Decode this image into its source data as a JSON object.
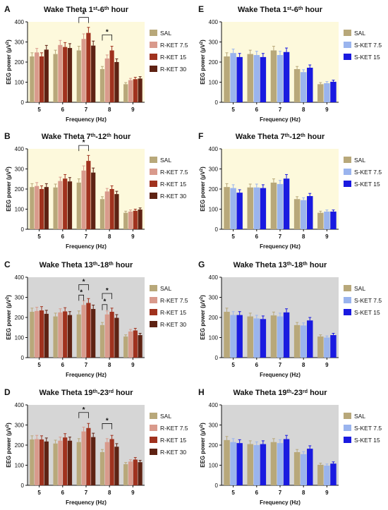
{
  "chart_data": [
    {
      "id": "A",
      "panel_label": "A",
      "type": "bar",
      "title": "Wake Theta 1st-6th hour",
      "title_parts": {
        "prefix": "Wake Theta 1",
        "sup1": "st",
        "mid": "-6",
        "sup2": "th",
        "suffix": " hour"
      },
      "xlabel": "Frequency (Hz)",
      "ylabel": "EEG power (µV²)",
      "ylabel_main": "EEG power (µV",
      "ylabel_sup": "2",
      "ylabel_end": ")",
      "ylim": [
        0,
        400
      ],
      "yticks": [
        "0",
        "100",
        "200",
        "300",
        "400"
      ],
      "categories": [
        "5",
        "6",
        "7",
        "8",
        "9"
      ],
      "background": "#fdf9dc",
      "series": [
        {
          "name": "SAL",
          "color": "#b8a87a",
          "values": [
            228,
            240,
            258,
            165,
            90
          ]
        },
        {
          "name": "R-KET 7.5",
          "color": "#d99a8c",
          "values": [
            248,
            285,
            315,
            218,
            110
          ]
        },
        {
          "name": "R-KET 15",
          "color": "#a0321e",
          "values": [
            228,
            275,
            345,
            258,
            115
          ]
        },
        {
          "name": "R-KET 30",
          "color": "#5e2213",
          "values": [
            262,
            270,
            282,
            200,
            118
          ]
        }
      ],
      "significance": [
        {
          "category": "7",
          "from": 0,
          "to": 2,
          "label": "*"
        },
        {
          "category": "8",
          "from": 0,
          "to": 2,
          "label": "*"
        }
      ]
    },
    {
      "id": "B",
      "panel_label": "B",
      "type": "bar",
      "title": "Wake Theta 7th-12th hour",
      "title_parts": {
        "prefix": "Wake Theta 7",
        "sup1": "th",
        "mid": "-12",
        "sup2": "th",
        "suffix": " hour"
      },
      "xlabel": "Frequency (Hz)",
      "ylabel": "EEG power (µV²)",
      "ylabel_main": "EEG power (µV",
      "ylabel_sup": "2",
      "ylabel_end": ")",
      "ylim": [
        0,
        400
      ],
      "yticks": [
        "0",
        "100",
        "200",
        "300",
        "400"
      ],
      "categories": [
        "5",
        "6",
        "7",
        "8",
        "9"
      ],
      "background": "#fdf9dc",
      "series": [
        {
          "name": "SAL",
          "color": "#b8a87a",
          "values": [
            210,
            208,
            232,
            150,
            82
          ]
        },
        {
          "name": "R-KET 7.5",
          "color": "#d99a8c",
          "values": [
            215,
            240,
            292,
            188,
            88
          ]
        },
        {
          "name": "R-KET 15",
          "color": "#a0321e",
          "values": [
            200,
            252,
            340,
            200,
            92
          ]
        },
        {
          "name": "R-KET 30",
          "color": "#5e2213",
          "values": [
            210,
            238,
            282,
            175,
            98
          ]
        }
      ],
      "significance": [
        {
          "category": "7",
          "from": 0,
          "to": 2,
          "label": "*"
        }
      ]
    },
    {
      "id": "C",
      "panel_label": "C",
      "type": "bar",
      "title": "Wake Theta 13th-18th hour",
      "title_parts": {
        "prefix": "Wake Theta 13",
        "sup1": "th",
        "mid": "-18",
        "sup2": "th",
        "suffix": " hour"
      },
      "xlabel": "Frequency (Hz)",
      "ylabel": "EEG power (µV²)",
      "ylabel_main": "EEG power (µV",
      "ylabel_sup": "2",
      "ylabel_end": ")",
      "ylim": [
        0,
        400
      ],
      "yticks": [
        "0",
        "100",
        "200",
        "300",
        "400"
      ],
      "categories": [
        "5",
        "6",
        "7",
        "8",
        "9"
      ],
      "background": "#d6d6d6",
      "series": [
        {
          "name": "SAL",
          "color": "#b8a87a",
          "values": [
            228,
            205,
            215,
            162,
            105
          ]
        },
        {
          "name": "R-KET 7.5",
          "color": "#d99a8c",
          "values": [
            232,
            225,
            262,
            215,
            130
          ]
        },
        {
          "name": "R-KET 15",
          "color": "#a0321e",
          "values": [
            235,
            230,
            272,
            228,
            135
          ]
        },
        {
          "name": "R-KET 30",
          "color": "#5e2213",
          "values": [
            218,
            212,
            242,
            198,
            112
          ]
        }
      ],
      "significance": [
        {
          "category": "7",
          "from": 0,
          "to": 1,
          "label": "*"
        },
        {
          "category": "7",
          "from": 0,
          "to": 2,
          "label": "*"
        },
        {
          "category": "8",
          "from": 0,
          "to": 1,
          "label": "*"
        },
        {
          "category": "8",
          "from": 0,
          "to": 2,
          "label": "*"
        }
      ]
    },
    {
      "id": "D",
      "panel_label": "D",
      "type": "bar",
      "title": "Wake Theta 19th-23rd hour",
      "title_parts": {
        "prefix": "Wake Theta 19",
        "sup1": "th",
        "mid": "-23",
        "sup2": "rd",
        "suffix": " hour"
      },
      "xlabel": "Frequency (Hz)",
      "ylabel": "EEG power (µV²)",
      "ylabel_main": "EEG power (µV",
      "ylabel_sup": "2",
      "ylabel_end": ")",
      "ylim": [
        0,
        400
      ],
      "yticks": [
        "0",
        "100",
        "200",
        "300",
        "400"
      ],
      "categories": [
        "5",
        "6",
        "7",
        "8",
        "9"
      ],
      "background": "#d6d6d6",
      "series": [
        {
          "name": "SAL",
          "color": "#b8a87a",
          "values": [
            228,
            208,
            215,
            165,
            105
          ]
        },
        {
          "name": "R-KET 7.5",
          "color": "#d99a8c",
          "values": [
            230,
            222,
            268,
            215,
            118
          ]
        },
        {
          "name": "R-KET 15",
          "color": "#a0321e",
          "values": [
            228,
            238,
            285,
            230,
            128
          ]
        },
        {
          "name": "R-KET 30",
          "color": "#5e2213",
          "values": [
            218,
            222,
            240,
            192,
            115
          ]
        }
      ],
      "significance": [
        {
          "category": "7",
          "from": 0,
          "to": 2,
          "label": "*"
        },
        {
          "category": "8",
          "from": 0,
          "to": 2,
          "label": "*"
        }
      ]
    },
    {
      "id": "E",
      "panel_label": "E",
      "type": "bar",
      "title": "Wake Theta 1st-6th hour",
      "title_parts": {
        "prefix": "Wake Theta 1",
        "sup1": "st",
        "mid": "-6",
        "sup2": "th",
        "suffix": " hour"
      },
      "xlabel": "Frequency (Hz)",
      "ylabel": "EEG power (µV²)",
      "ylabel_main": "EEG power (µV",
      "ylabel_sup": "2",
      "ylabel_end": ")",
      "ylim": [
        0,
        400
      ],
      "yticks": [
        "0",
        "100",
        "200",
        "300",
        "400"
      ],
      "categories": [
        "5",
        "6",
        "7",
        "8",
        "9"
      ],
      "background": "#fdf9dc",
      "series": [
        {
          "name": "SAL",
          "color": "#b8a87a",
          "values": [
            228,
            240,
            258,
            165,
            90
          ]
        },
        {
          "name": "S-KET 7.5",
          "color": "#9ab4ee",
          "values": [
            245,
            235,
            235,
            150,
            95
          ]
        },
        {
          "name": "S-KET 15",
          "color": "#1a1ae0",
          "values": [
            225,
            225,
            250,
            172,
            102
          ]
        }
      ],
      "significance": []
    },
    {
      "id": "F",
      "panel_label": "F",
      "type": "bar",
      "title": "Wake Theta 7th-12th hour",
      "title_parts": {
        "prefix": "Wake Theta 7",
        "sup1": "th",
        "mid": "-12",
        "sup2": "th",
        "suffix": " hour"
      },
      "xlabel": "Frequency (Hz)",
      "ylabel": "EEG power (µV²)",
      "ylabel_main": "EEG power (µV",
      "ylabel_sup": "2",
      "ylabel_end": ")",
      "ylim": [
        0,
        400
      ],
      "yticks": [
        "0",
        "100",
        "200",
        "300",
        "400"
      ],
      "categories": [
        "5",
        "6",
        "7",
        "8",
        "9"
      ],
      "background": "#fdf9dc",
      "series": [
        {
          "name": "SAL",
          "color": "#b8a87a",
          "values": [
            210,
            208,
            232,
            150,
            82
          ]
        },
        {
          "name": "S-KET 7.5",
          "color": "#9ab4ee",
          "values": [
            205,
            208,
            225,
            145,
            88
          ]
        },
        {
          "name": "S-KET 15",
          "color": "#1a1ae0",
          "values": [
            182,
            205,
            252,
            165,
            88
          ]
        }
      ],
      "significance": []
    },
    {
      "id": "G",
      "panel_label": "G",
      "type": "bar",
      "title": "Wake Theta 13th-18th hour",
      "title_parts": {
        "prefix": "Wake Theta 13",
        "sup1": "th",
        "mid": "-18",
        "sup2": "th",
        "suffix": " hour"
      },
      "xlabel": "Frequency (Hz)",
      "ylabel": "EEG power (µV²)",
      "ylabel_main": "EEG power (µV",
      "ylabel_sup": "2",
      "ylabel_end": ")",
      "ylim": [
        0,
        400
      ],
      "yticks": [
        "0",
        "100",
        "200",
        "300",
        "400"
      ],
      "categories": [
        "5",
        "6",
        "7",
        "8",
        "9"
      ],
      "background": "#d6d6d6",
      "series": [
        {
          "name": "SAL",
          "color": "#b8a87a",
          "values": [
            228,
            205,
            210,
            162,
            105
          ]
        },
        {
          "name": "S-KET 7.5",
          "color": "#9ab4ee",
          "values": [
            212,
            195,
            205,
            160,
            100
          ]
        },
        {
          "name": "S-KET 15",
          "color": "#1a1ae0",
          "values": [
            212,
            192,
            225,
            185,
            112
          ]
        }
      ],
      "significance": []
    },
    {
      "id": "H",
      "panel_label": "H",
      "type": "bar",
      "title": "Wake Theta 19th-23rd hour",
      "title_parts": {
        "prefix": "Wake Theta 19",
        "sup1": "th",
        "mid": "-23",
        "sup2": "rd",
        "suffix": " hour"
      },
      "xlabel": "Frequency (Hz)",
      "ylabel": "EEG power (µV²)",
      "ylabel_main": "EEG power (µV",
      "ylabel_sup": "2",
      "ylabel_end": ")",
      "ylim": [
        0,
        400
      ],
      "yticks": [
        "0",
        "100",
        "200",
        "300",
        "400"
      ],
      "categories": [
        "5",
        "6",
        "7",
        "8",
        "9"
      ],
      "background": "#d6d6d6",
      "series": [
        {
          "name": "SAL",
          "color": "#b8a87a",
          "values": [
            225,
            205,
            215,
            165,
            102
          ]
        },
        {
          "name": "S-KET 7.5",
          "color": "#9ab4ee",
          "values": [
            215,
            200,
            210,
            155,
            98
          ]
        },
        {
          "name": "S-KET 15",
          "color": "#1a1ae0",
          "values": [
            210,
            205,
            230,
            182,
            108
          ]
        }
      ],
      "significance": []
    }
  ]
}
